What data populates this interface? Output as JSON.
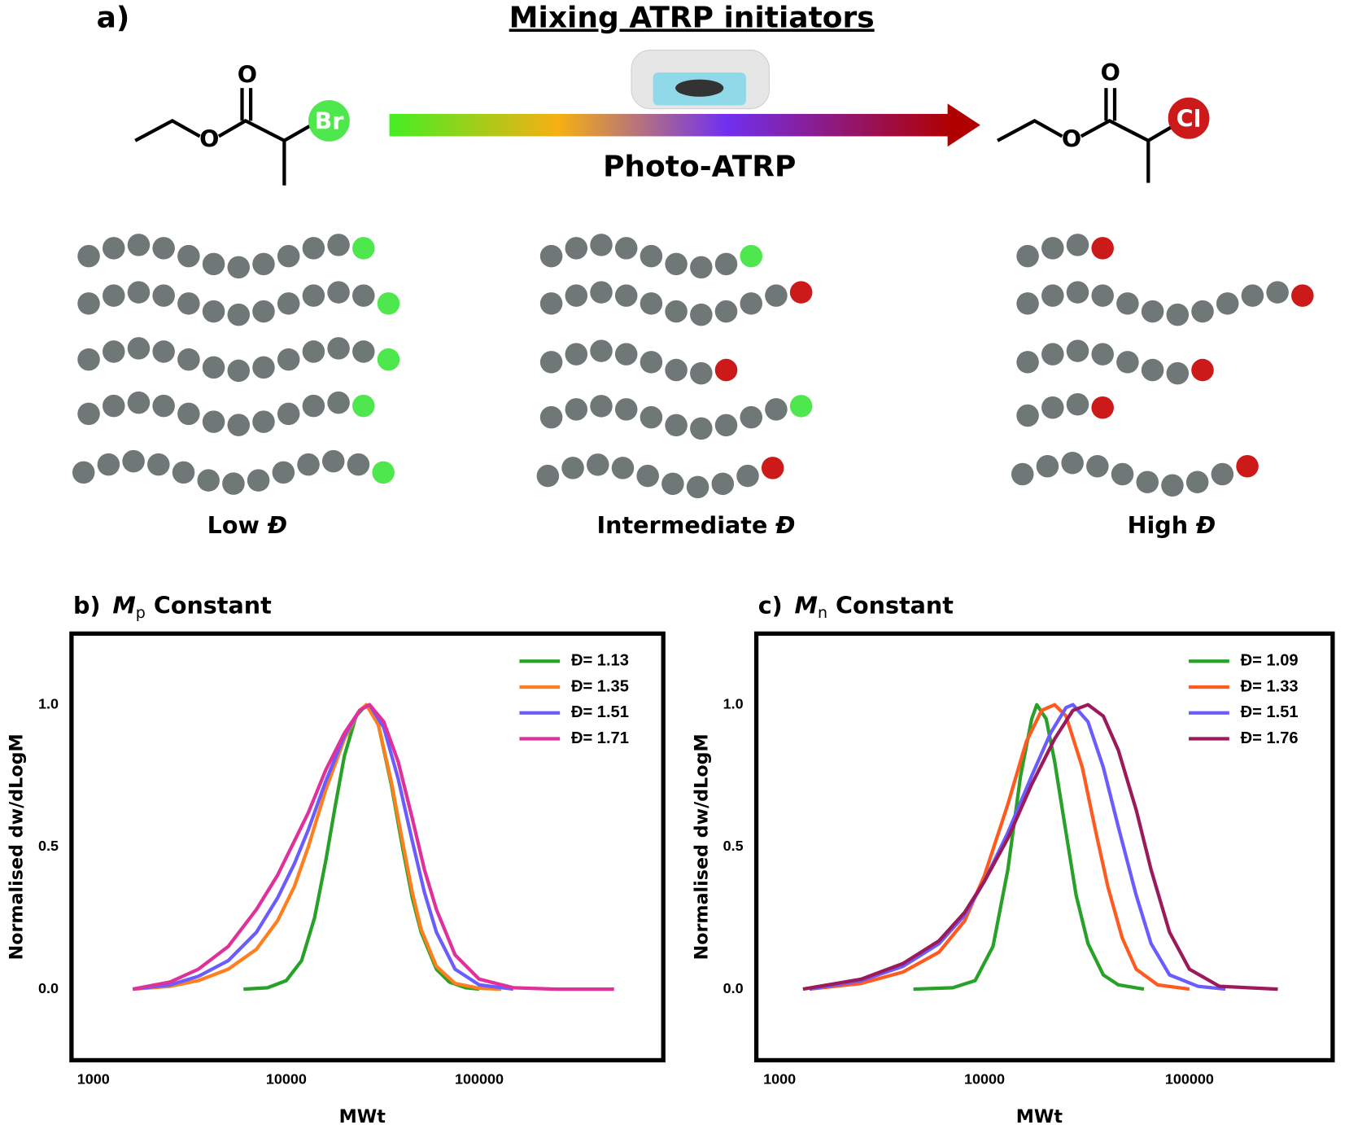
{
  "diagram": {
    "panel_label": "a)",
    "title": "Mixing ATRP initiators",
    "reaction": "Photo-ATRP",
    "left_atoms": {
      "carbonyl_o": "O",
      "ester_o": "O",
      "halogen": "Br"
    },
    "right_atoms": {
      "carbonyl_o": "O",
      "ester_o": "O",
      "halogen": "Cl"
    },
    "groups": [
      {
        "label": "Low",
        "symbol": "Đ"
      },
      {
        "label": "Intermediate",
        "symbol": "Đ"
      },
      {
        "label": "High",
        "symbol": "Đ"
      }
    ]
  },
  "chart_data": [
    {
      "type": "line",
      "panel_label": "b)",
      "title_symbol": "M",
      "title_subscript": "p",
      "title_text": " Constant",
      "x_label": "MWt",
      "y_label": "Normalised dw/dLogM",
      "x_log": true,
      "xlim": [
        770,
        900000
      ],
      "xticks": [
        1000,
        10000,
        100000
      ],
      "ylim": [
        -0.25,
        1.25
      ],
      "yticks": [
        {
          "value": 0,
          "label": "0.0"
        },
        {
          "value": 0.5,
          "label": "0.5"
        },
        {
          "value": 1,
          "label": "1.0"
        }
      ],
      "legend": "upper right",
      "series": [
        {
          "name": "Đ= 1.13",
          "color": "#27a127",
          "x": [
            6000,
            8000,
            10000,
            12000,
            14000,
            16000,
            18000,
            20000,
            23000,
            26000,
            30000,
            35000,
            40000,
            45000,
            50000,
            60000,
            70000,
            85000,
            100000
          ],
          "values": [
            0,
            0.005,
            0.03,
            0.1,
            0.25,
            0.45,
            0.65,
            0.82,
            0.96,
            1.0,
            0.93,
            0.72,
            0.5,
            0.32,
            0.2,
            0.07,
            0.025,
            0.005,
            0
          ]
        },
        {
          "name": "Đ= 1.35",
          "color": "#ff7f1e",
          "x": [
            1600,
            2500,
            3500,
            5000,
            7000,
            9000,
            11000,
            13000,
            16000,
            20000,
            24000,
            26000,
            30000,
            35000,
            40000,
            45000,
            50000,
            60000,
            75000,
            100000,
            130000
          ],
          "values": [
            0,
            0.01,
            0.03,
            0.07,
            0.14,
            0.24,
            0.36,
            0.5,
            0.7,
            0.88,
            0.98,
            1.0,
            0.93,
            0.73,
            0.52,
            0.34,
            0.21,
            0.08,
            0.02,
            0.003,
            0
          ]
        },
        {
          "name": "Đ= 1.51",
          "color": "#6a5cff",
          "x": [
            1600,
            2500,
            3500,
            5000,
            7000,
            9000,
            11000,
            13000,
            16000,
            20000,
            24000,
            27000,
            32000,
            38000,
            45000,
            52000,
            60000,
            75000,
            100000,
            150000
          ],
          "values": [
            0,
            0.015,
            0.045,
            0.1,
            0.2,
            0.32,
            0.44,
            0.56,
            0.73,
            0.89,
            0.98,
            1.0,
            0.92,
            0.74,
            0.52,
            0.34,
            0.2,
            0.07,
            0.015,
            0
          ]
        },
        {
          "name": "Đ= 1.71",
          "color": "#e0309a",
          "x": [
            1600,
            2500,
            3500,
            5000,
            7000,
            9000,
            11000,
            13000,
            16000,
            20000,
            24000,
            27000,
            32000,
            38000,
            45000,
            52000,
            60000,
            75000,
            100000,
            150000,
            250000,
            500000
          ],
          "values": [
            0,
            0.025,
            0.07,
            0.15,
            0.28,
            0.4,
            0.52,
            0.62,
            0.77,
            0.9,
            0.98,
            1.0,
            0.94,
            0.8,
            0.6,
            0.42,
            0.28,
            0.12,
            0.035,
            0.005,
            0,
            0
          ]
        }
      ]
    },
    {
      "type": "line",
      "panel_label": "c)",
      "title_symbol": "M",
      "title_subscript": "n",
      "title_text": " Constant",
      "x_label": "MWt",
      "y_label": "Normalised dw/dLogM",
      "x_log": true,
      "xlim": [
        770,
        500000
      ],
      "xticks": [
        1000,
        10000,
        100000
      ],
      "ylim": [
        -0.25,
        1.25
      ],
      "yticks": [
        {
          "value": 0,
          "label": "0.0"
        },
        {
          "value": 0.5,
          "label": "0.5"
        },
        {
          "value": 1,
          "label": "1.0"
        }
      ],
      "legend": "upper right",
      "series": [
        {
          "name": "Đ= 1.09",
          "color": "#27a127",
          "x": [
            4500,
            7000,
            9000,
            11000,
            13000,
            15000,
            17000,
            18000,
            20000,
            22000,
            25000,
            28000,
            32000,
            38000,
            45000,
            60000
          ],
          "values": [
            0,
            0.005,
            0.03,
            0.15,
            0.42,
            0.75,
            0.95,
            1.0,
            0.95,
            0.8,
            0.55,
            0.33,
            0.16,
            0.05,
            0.015,
            0
          ]
        },
        {
          "name": "Đ= 1.33",
          "color": "#ff5a1f",
          "x": [
            1400,
            2500,
            4000,
            6000,
            8000,
            10000,
            13000,
            16000,
            19000,
            22000,
            25000,
            30000,
            35000,
            40000,
            47000,
            55000,
            70000,
            100000
          ],
          "values": [
            0,
            0.02,
            0.06,
            0.13,
            0.24,
            0.4,
            0.65,
            0.87,
            0.98,
            1.0,
            0.96,
            0.78,
            0.55,
            0.36,
            0.18,
            0.07,
            0.015,
            0
          ]
        },
        {
          "name": "Đ= 1.51",
          "color": "#6a5cff",
          "x": [
            1400,
            2500,
            4000,
            6000,
            8000,
            10000,
            13000,
            17000,
            21000,
            25000,
            27000,
            32000,
            38000,
            45000,
            55000,
            65000,
            80000,
            110000,
            150000
          ],
          "values": [
            0,
            0.03,
            0.08,
            0.16,
            0.26,
            0.38,
            0.55,
            0.75,
            0.9,
            0.99,
            1.0,
            0.94,
            0.78,
            0.57,
            0.33,
            0.16,
            0.05,
            0.01,
            0
          ]
        },
        {
          "name": "Đ= 1.76",
          "color": "#9b1b5a",
          "x": [
            1300,
            2500,
            4000,
            6000,
            8000,
            10000,
            13000,
            17000,
            22000,
            27000,
            32000,
            38000,
            45000,
            55000,
            65000,
            80000,
            100000,
            140000,
            270000
          ],
          "values": [
            0,
            0.035,
            0.09,
            0.17,
            0.27,
            0.38,
            0.53,
            0.72,
            0.88,
            0.98,
            1.0,
            0.96,
            0.84,
            0.63,
            0.42,
            0.2,
            0.07,
            0.01,
            0
          ]
        }
      ]
    }
  ]
}
